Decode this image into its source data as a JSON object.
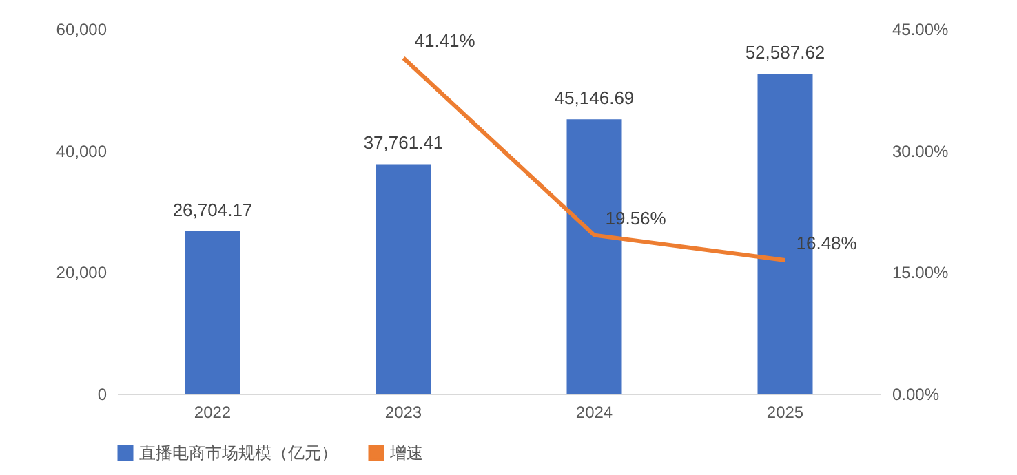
{
  "chart_data": {
    "type": "bar",
    "categories": [
      "2022",
      "2023",
      "2024",
      "2025"
    ],
    "series": [
      {
        "name": "直播电商市场规模（亿元）",
        "color": "#4472c4",
        "values": [
          26704.17,
          37761.41,
          45146.69,
          52587.62
        ],
        "value_labels": [
          "26,704.17",
          "37,761.41",
          "45,146.69",
          "52,587.62"
        ]
      },
      {
        "name": "增速",
        "type": "line",
        "axis": "y2",
        "color": "#ed7d31",
        "values": [
          null,
          41.41,
          19.56,
          16.48
        ],
        "value_labels": [
          null,
          "41.41%",
          "19.56%",
          "16.48%"
        ]
      }
    ],
    "ylim": [
      0,
      60000
    ],
    "yticks": [
      0,
      {
        "value": 20000,
        "label": "20,000"
      },
      {
        "value": 40000,
        "label": "40,000"
      },
      {
        "value": 60000,
        "label": "60,000"
      }
    ],
    "y2lim": [
      0,
      45
    ],
    "y2ticks": [
      {
        "value": 0,
        "label": "0.00%"
      },
      {
        "value": 15,
        "label": "15.00%"
      },
      {
        "value": 30,
        "label": "30.00%"
      },
      {
        "value": 45,
        "label": "45.00%"
      }
    ],
    "legend": "bottom",
    "grid": false,
    "marker": "none",
    "line_style": "solid"
  }
}
